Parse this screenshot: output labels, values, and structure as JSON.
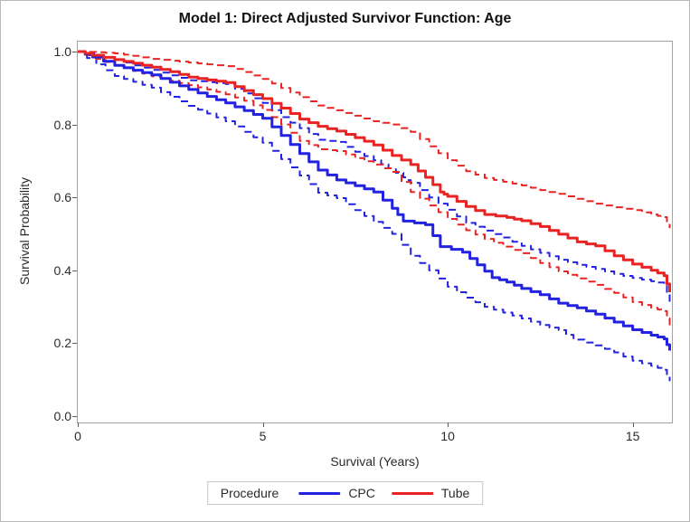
{
  "figure": {
    "title": "Model 1: Direct Adjusted Survivor Function: Age"
  },
  "legend": {
    "title": "Procedure",
    "items": [
      {
        "label": "CPC",
        "color": "#2222e0"
      },
      {
        "label": "Tube",
        "color": "#e92222"
      }
    ]
  },
  "chart_data": {
    "type": "line",
    "title": "Model 1: Direct Adjusted Survivor Function: Age",
    "xlabel": "Survival (Years)",
    "ylabel": "Survival Probability",
    "xlim": [
      0,
      16.06
    ],
    "ylim": [
      0,
      1.0
    ],
    "grid": false,
    "legend_position": "bottom",
    "x_ticks": [
      {
        "v": 0,
        "label": "0"
      },
      {
        "v": 5,
        "label": "5"
      },
      {
        "v": 10,
        "label": "10"
      },
      {
        "v": 15,
        "label": "15"
      }
    ],
    "y_ticks": [
      {
        "v": 1.0,
        "label": "1.0"
      },
      {
        "v": 0.8,
        "label": "0.8"
      },
      {
        "v": 0.6,
        "label": "0.6"
      },
      {
        "v": 0.4,
        "label": "0.4"
      },
      {
        "v": 0.2,
        "label": "0.2"
      },
      {
        "v": 0.0,
        "label": "0.0"
      }
    ],
    "series": [
      {
        "name": "CPC",
        "role": "estimate",
        "color": "#2222e0",
        "style": "solid",
        "width": 3,
        "points": [
          [
            0,
            1.0
          ],
          [
            0.4,
            0.985
          ],
          [
            1,
            0.962
          ],
          [
            1.5,
            0.949
          ],
          [
            2,
            0.936
          ],
          [
            2.5,
            0.916
          ],
          [
            3,
            0.896
          ],
          [
            3.5,
            0.877
          ],
          [
            4,
            0.859
          ],
          [
            4.5,
            0.838
          ],
          [
            5,
            0.817
          ],
          [
            5.5,
            0.77
          ],
          [
            6,
            0.72
          ],
          [
            6.5,
            0.675
          ],
          [
            7,
            0.648
          ],
          [
            7.5,
            0.632
          ],
          [
            8,
            0.615
          ],
          [
            8.5,
            0.57
          ],
          [
            8.8,
            0.535
          ],
          [
            9.4,
            0.525
          ],
          [
            9.8,
            0.465
          ],
          [
            10.4,
            0.45
          ],
          [
            10.8,
            0.415
          ],
          [
            11.2,
            0.38
          ],
          [
            11.6,
            0.368
          ],
          [
            12,
            0.35
          ],
          [
            12.5,
            0.333
          ],
          [
            13,
            0.31
          ],
          [
            13.5,
            0.297
          ],
          [
            14,
            0.28
          ],
          [
            14.5,
            0.258
          ],
          [
            15,
            0.237
          ],
          [
            15.5,
            0.222
          ],
          [
            15.85,
            0.212
          ],
          [
            16,
            0.18
          ]
        ]
      },
      {
        "name": "CPC 95% CI upper",
        "role": "ci_upper",
        "color": "#2222e0",
        "style": "dashed",
        "width": 2,
        "points": [
          [
            0,
            1.0
          ],
          [
            0.5,
            0.99
          ],
          [
            1,
            0.978
          ],
          [
            1.5,
            0.962
          ],
          [
            2,
            0.95
          ],
          [
            2.5,
            0.935
          ],
          [
            3,
            0.921
          ],
          [
            3.5,
            0.916
          ],
          [
            4,
            0.911
          ],
          [
            4.5,
            0.885
          ],
          [
            5,
            0.859
          ],
          [
            5.5,
            0.82
          ],
          [
            6,
            0.79
          ],
          [
            6.5,
            0.758
          ],
          [
            7,
            0.752
          ],
          [
            7.5,
            0.725
          ],
          [
            8,
            0.702
          ],
          [
            8.4,
            0.68
          ],
          [
            8.8,
            0.655
          ],
          [
            9,
            0.64
          ],
          [
            9.5,
            0.6
          ],
          [
            10,
            0.566
          ],
          [
            10.5,
            0.53
          ],
          [
            11,
            0.509
          ],
          [
            11.5,
            0.49
          ],
          [
            12,
            0.467
          ],
          [
            12.5,
            0.448
          ],
          [
            13,
            0.429
          ],
          [
            13.5,
            0.415
          ],
          [
            14,
            0.404
          ],
          [
            14.5,
            0.39
          ],
          [
            15,
            0.379
          ],
          [
            15.5,
            0.37
          ],
          [
            15.85,
            0.363
          ],
          [
            16,
            0.313
          ]
        ]
      },
      {
        "name": "CPC 95% CI lower",
        "role": "ci_lower",
        "color": "#2222e0",
        "style": "dashed",
        "width": 2,
        "points": [
          [
            0,
            1.0
          ],
          [
            0.5,
            0.965
          ],
          [
            1,
            0.933
          ],
          [
            1.5,
            0.917
          ],
          [
            2,
            0.901
          ],
          [
            2.5,
            0.876
          ],
          [
            3,
            0.851
          ],
          [
            3.5,
            0.83
          ],
          [
            4,
            0.809
          ],
          [
            4.5,
            0.78
          ],
          [
            5,
            0.75
          ],
          [
            5.5,
            0.705
          ],
          [
            6,
            0.66
          ],
          [
            6.5,
            0.613
          ],
          [
            7,
            0.598
          ],
          [
            7.5,
            0.565
          ],
          [
            8,
            0.533
          ],
          [
            8.5,
            0.5
          ],
          [
            9,
            0.44
          ],
          [
            9.5,
            0.4
          ],
          [
            10,
            0.355
          ],
          [
            10.5,
            0.325
          ],
          [
            11,
            0.3
          ],
          [
            11.5,
            0.284
          ],
          [
            12,
            0.268
          ],
          [
            12.5,
            0.25
          ],
          [
            13,
            0.236
          ],
          [
            13.4,
            0.21
          ],
          [
            14,
            0.194
          ],
          [
            14.5,
            0.175
          ],
          [
            15,
            0.152
          ],
          [
            15.5,
            0.138
          ],
          [
            15.85,
            0.127
          ],
          [
            16,
            0.096
          ]
        ]
      },
      {
        "name": "Tube",
        "role": "estimate",
        "color": "#e92222",
        "style": "solid",
        "width": 3,
        "points": [
          [
            0,
            1.0
          ],
          [
            0.4,
            0.99
          ],
          [
            1,
            0.978
          ],
          [
            1.5,
            0.968
          ],
          [
            2,
            0.957
          ],
          [
            2.5,
            0.945
          ],
          [
            3,
            0.93
          ],
          [
            3.5,
            0.922
          ],
          [
            4,
            0.915
          ],
          [
            4.5,
            0.893
          ],
          [
            5,
            0.871
          ],
          [
            5.5,
            0.845
          ],
          [
            6,
            0.815
          ],
          [
            6.5,
            0.795
          ],
          [
            7,
            0.782
          ],
          [
            7.5,
            0.764
          ],
          [
            8,
            0.744
          ],
          [
            8.5,
            0.715
          ],
          [
            9,
            0.69
          ],
          [
            9.4,
            0.655
          ],
          [
            9.8,
            0.615
          ],
          [
            10,
            0.603
          ],
          [
            10.5,
            0.575
          ],
          [
            11,
            0.553
          ],
          [
            11.6,
            0.545
          ],
          [
            12,
            0.536
          ],
          [
            12.5,
            0.52
          ],
          [
            13,
            0.499
          ],
          [
            13.5,
            0.478
          ],
          [
            14,
            0.467
          ],
          [
            14.5,
            0.44
          ],
          [
            15,
            0.417
          ],
          [
            15.5,
            0.4
          ],
          [
            15.85,
            0.385
          ],
          [
            16,
            0.34
          ]
        ]
      },
      {
        "name": "Tube 95% CI upper",
        "role": "ci_upper",
        "color": "#e92222",
        "style": "dashed",
        "width": 2,
        "points": [
          [
            0,
            1.0
          ],
          [
            0.5,
            0.998
          ],
          [
            1,
            0.995
          ],
          [
            1.5,
            0.988
          ],
          [
            2,
            0.98
          ],
          [
            2.5,
            0.975
          ],
          [
            3,
            0.97
          ],
          [
            3.5,
            0.965
          ],
          [
            4,
            0.96
          ],
          [
            4.5,
            0.944
          ],
          [
            5,
            0.925
          ],
          [
            5.5,
            0.9
          ],
          [
            6,
            0.875
          ],
          [
            6.5,
            0.852
          ],
          [
            7,
            0.839
          ],
          [
            7.5,
            0.824
          ],
          [
            8,
            0.809
          ],
          [
            8.5,
            0.8
          ],
          [
            9,
            0.78
          ],
          [
            9.5,
            0.74
          ],
          [
            10,
            0.702
          ],
          [
            10.5,
            0.672
          ],
          [
            11,
            0.653
          ],
          [
            11.5,
            0.643
          ],
          [
            12,
            0.633
          ],
          [
            12.5,
            0.62
          ],
          [
            13,
            0.61
          ],
          [
            13.5,
            0.596
          ],
          [
            14,
            0.583
          ],
          [
            14.5,
            0.573
          ],
          [
            15,
            0.565
          ],
          [
            15.5,
            0.553
          ],
          [
            15.85,
            0.546
          ],
          [
            16,
            0.516
          ]
        ]
      },
      {
        "name": "Tube 95% CI lower",
        "role": "ci_lower",
        "color": "#e92222",
        "style": "dashed",
        "width": 2,
        "points": [
          [
            0,
            1.0
          ],
          [
            0.5,
            0.98
          ],
          [
            1,
            0.963
          ],
          [
            1.5,
            0.947
          ],
          [
            2,
            0.932
          ],
          [
            2.5,
            0.92
          ],
          [
            3,
            0.908
          ],
          [
            3.5,
            0.896
          ],
          [
            4,
            0.883
          ],
          [
            4.5,
            0.865
          ],
          [
            5,
            0.84
          ],
          [
            5.5,
            0.8
          ],
          [
            6,
            0.755
          ],
          [
            6.5,
            0.732
          ],
          [
            7,
            0.727
          ],
          [
            7.5,
            0.708
          ],
          [
            8,
            0.69
          ],
          [
            8.5,
            0.67
          ],
          [
            9,
            0.615
          ],
          [
            9.5,
            0.578
          ],
          [
            10,
            0.541
          ],
          [
            10.5,
            0.51
          ],
          [
            11,
            0.486
          ],
          [
            11.5,
            0.465
          ],
          [
            12,
            0.447
          ],
          [
            12.5,
            0.42
          ],
          [
            13,
            0.397
          ],
          [
            13.5,
            0.378
          ],
          [
            14,
            0.36
          ],
          [
            14.5,
            0.338
          ],
          [
            15,
            0.313
          ],
          [
            15.5,
            0.297
          ],
          [
            15.85,
            0.288
          ],
          [
            16,
            0.248
          ]
        ]
      }
    ]
  }
}
